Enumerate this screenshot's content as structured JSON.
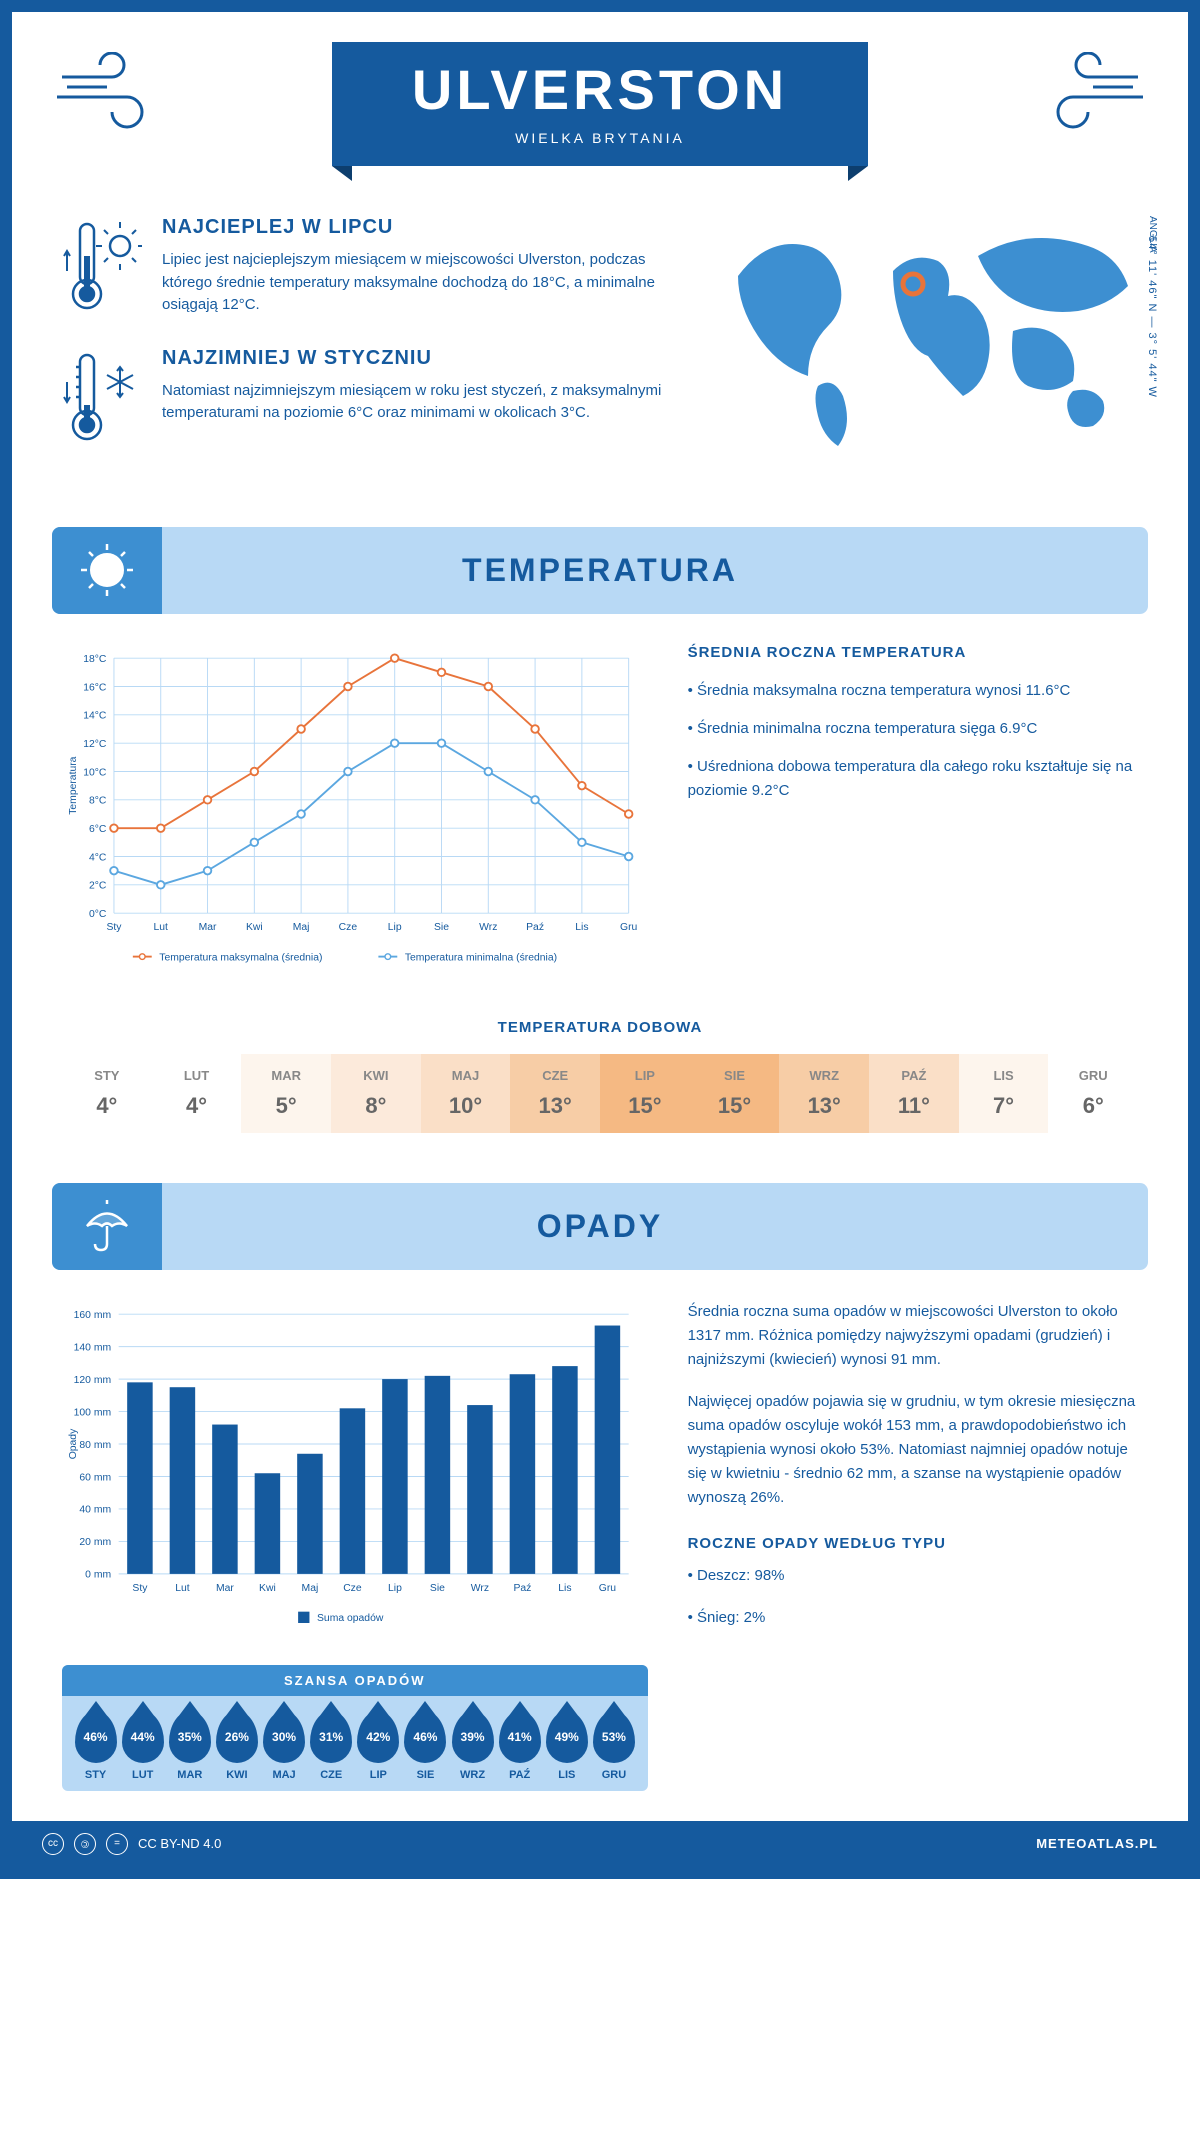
{
  "header": {
    "city": "ULVERSTON",
    "country": "WIELKA BRYTANIA"
  },
  "intro": {
    "hot": {
      "title": "NAJCIEPLEJ W LIPCU",
      "text": "Lipiec jest najcieplejszym miesiącem w miejscowości Ulverston, podczas którego średnie temperatury maksymalne dochodzą do 18°C, a minimalne osiągają 12°C."
    },
    "cold": {
      "title": "NAJZIMNIEJ W STYCZNIU",
      "text": "Natomiast najzimniejszym miesiącem w roku jest styczeń, z maksymalnymi temperaturami na poziomie 6°C oraz minimami w okolicach 3°C."
    },
    "coords": "54° 11' 46\" N — 3° 5' 44\" W",
    "region": "ANGLIA"
  },
  "colors": {
    "primary": "#155a9e",
    "light_blue": "#b8d9f5",
    "mid_blue": "#3d8fd1",
    "line_max": "#e8743b",
    "line_min": "#5ba7e0",
    "bar": "#155a9e",
    "grid": "#b8d9f5"
  },
  "months_short": [
    "Sty",
    "Lut",
    "Mar",
    "Kwi",
    "Maj",
    "Cze",
    "Lip",
    "Sie",
    "Wrz",
    "Paź",
    "Lis",
    "Gru"
  ],
  "months_upper": [
    "STY",
    "LUT",
    "MAR",
    "KWI",
    "MAJ",
    "CZE",
    "LIP",
    "SIE",
    "WRZ",
    "PAŹ",
    "LIS",
    "GRU"
  ],
  "temperature": {
    "section_title": "TEMPERATURA",
    "chart": {
      "type": "line",
      "ylabel": "Temperatura",
      "ylim": [
        0,
        18
      ],
      "ytick_step": 2,
      "max_values": [
        6,
        6,
        8,
        10,
        13,
        16,
        18,
        17,
        16,
        13,
        9,
        7
      ],
      "min_values": [
        3,
        2,
        3,
        5,
        7,
        10,
        12,
        12,
        10,
        8,
        5,
        4
      ],
      "legend_max": "Temperatura maksymalna (średnia)",
      "legend_min": "Temperatura minimalna (średnia)",
      "max_color": "#e8743b",
      "min_color": "#5ba7e0",
      "grid_color": "#b8d9f5",
      "line_width": 2,
      "marker": "circle",
      "marker_size": 4
    },
    "info": {
      "title": "ŚREDNIA ROCZNA TEMPERATURA",
      "bullets": [
        "• Średnia maksymalna roczna temperatura wynosi 11.6°C",
        "• Średnia minimalna roczna temperatura sięga 6.9°C",
        "• Uśredniona dobowa temperatura dla całego roku kształtuje się na poziomie 9.2°C"
      ]
    },
    "daily": {
      "title": "TEMPERATURA DOBOWA",
      "values": [
        "4°",
        "4°",
        "5°",
        "8°",
        "10°",
        "13°",
        "15°",
        "15°",
        "13°",
        "11°",
        "7°",
        "6°"
      ],
      "cell_colors": [
        "#ffffff",
        "#ffffff",
        "#fdf5ed",
        "#fceadb",
        "#fadfc7",
        "#f7cda6",
        "#f5b983",
        "#f5b983",
        "#f7cda6",
        "#fadfc7",
        "#fdf5ed",
        "#ffffff"
      ]
    }
  },
  "precip": {
    "section_title": "OPADY",
    "chart": {
      "type": "bar",
      "ylabel": "Opady",
      "ylim": [
        0,
        160
      ],
      "ytick_step": 20,
      "values": [
        118,
        115,
        92,
        62,
        74,
        102,
        120,
        122,
        104,
        123,
        128,
        153
      ],
      "bar_color": "#155a9e",
      "grid_color": "#b8d9f5",
      "bar_width": 0.6,
      "legend": "Suma opadów"
    },
    "text1": "Średnia roczna suma opadów w miejscowości Ulverston to około 1317 mm. Różnica pomiędzy najwyższymi opadami (grudzień) i najniższymi (kwiecień) wynosi 91 mm.",
    "text2": "Najwięcej opadów pojawia się w grudniu, w tym okresie miesięczna suma opadów oscyluje wokół 153 mm, a prawdopodobieństwo ich wystąpienia wynosi około 53%. Natomiast najmniej opadów notuje się w kwietniu - średnio 62 mm, a szanse na wystąpienie opadów wynoszą 26%.",
    "chance": {
      "title": "SZANSA OPADÓW",
      "values": [
        "46%",
        "44%",
        "35%",
        "26%",
        "30%",
        "31%",
        "42%",
        "46%",
        "39%",
        "41%",
        "49%",
        "53%"
      ]
    },
    "by_type": {
      "title": "ROCZNE OPADY WEDŁUG TYPU",
      "bullets": [
        "• Deszcz: 98%",
        "• Śnieg: 2%"
      ]
    }
  },
  "footer": {
    "license": "CC BY-ND 4.0",
    "site": "METEOATLAS.PL"
  }
}
